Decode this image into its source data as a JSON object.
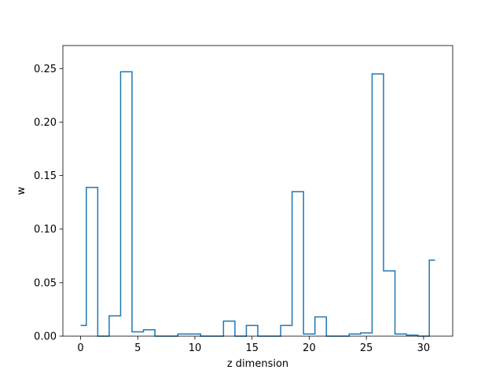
{
  "chart_data": {
    "type": "step",
    "title": "",
    "xlabel": "z dimension",
    "ylabel": "w",
    "xlim": [
      -1.55,
      32.55
    ],
    "ylim": [
      0,
      0.2715
    ],
    "xticks": [
      0,
      5,
      10,
      15,
      20,
      25,
      30
    ],
    "yticks": [
      0.0,
      0.05,
      0.1,
      0.15,
      0.2,
      0.25
    ],
    "xtick_labels": [
      "0",
      "5",
      "10",
      "15",
      "20",
      "25",
      "30"
    ],
    "ytick_labels": [
      "0.00",
      "0.05",
      "0.10",
      "0.15",
      "0.20",
      "0.25"
    ],
    "grid": false,
    "step_where": "mid",
    "line_color": "#1f77b4",
    "series": [
      {
        "x": [
          0,
          1,
          2,
          3,
          4,
          5,
          6,
          7,
          8,
          9,
          10,
          11,
          12,
          13,
          14,
          15,
          16,
          17,
          18,
          19,
          20,
          21,
          22,
          23,
          24,
          25,
          26,
          27,
          28,
          29,
          30,
          31
        ],
        "values": [
          0.01,
          0.139,
          0.0,
          0.019,
          0.247,
          0.004,
          0.006,
          0.0,
          0.0,
          0.002,
          0.002,
          0.0,
          0.0,
          0.014,
          0.0,
          0.01,
          0.0,
          0.0,
          0.01,
          0.135,
          0.002,
          0.018,
          0.0,
          0.0,
          0.002,
          0.003,
          0.245,
          0.061,
          0.002,
          0.001,
          0.0,
          0.071
        ]
      }
    ]
  }
}
